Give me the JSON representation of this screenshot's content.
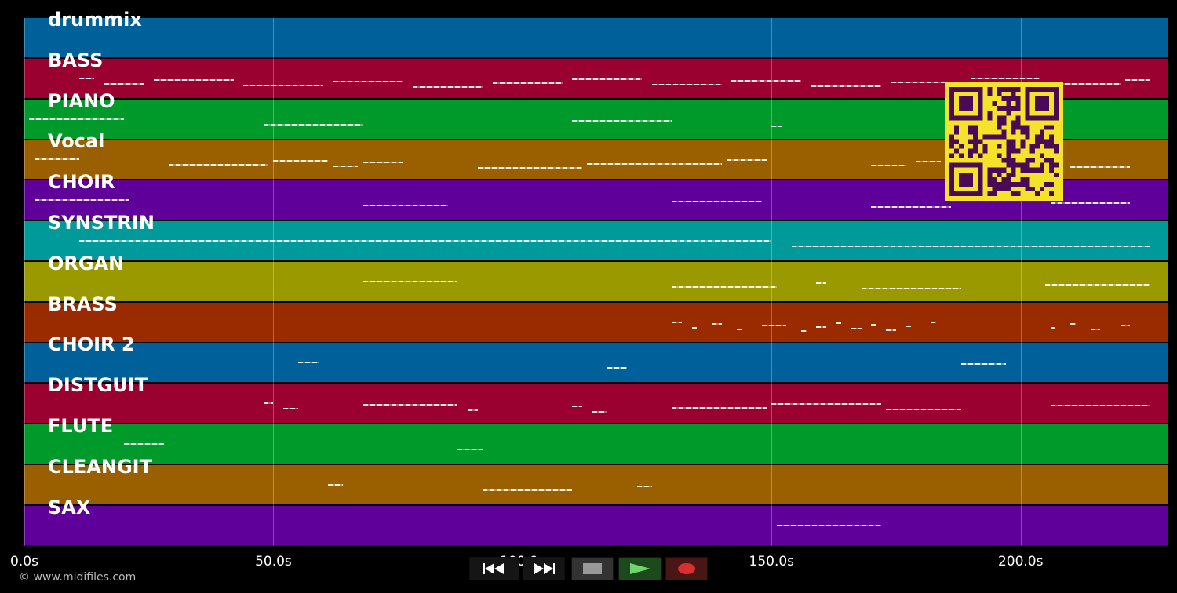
{
  "tracks": [
    {
      "label": "drummix",
      "color": "#00609a"
    },
    {
      "label": "BASS",
      "color": "#9a0030"
    },
    {
      "label": "PIANO",
      "color": "#009a2a"
    },
    {
      "label": "Vocal",
      "color": "#9a6000"
    },
    {
      "label": "CHOIR",
      "color": "#60009a"
    },
    {
      "label": "SYNSTRIN",
      "color": "#009a9a"
    },
    {
      "label": "ORGAN",
      "color": "#9a9a00"
    },
    {
      "label": "BRASS",
      "color": "#9a2a00"
    },
    {
      "label": "CHOIR 2",
      "color": "#00609a"
    },
    {
      "label": "DISTGUIT",
      "color": "#9a0030"
    },
    {
      "label": "FLUTE",
      "color": "#009a2a"
    },
    {
      "label": "CLEANGIT",
      "color": "#9a6000"
    },
    {
      "label": "SAX",
      "color": "#60009a"
    }
  ],
  "timeline": {
    "duration_seconds": 229.5,
    "ticks": [
      {
        "seconds": 0,
        "label": "0.0s"
      },
      {
        "seconds": 50,
        "label": "50.0s"
      },
      {
        "seconds": 100,
        "label": "100.0s"
      },
      {
        "seconds": 150,
        "label": "150.0s"
      },
      {
        "seconds": 200,
        "label": "200.0s"
      }
    ]
  },
  "notes": {
    "BASS": [
      [
        11,
        14
      ],
      [
        16,
        24
      ],
      [
        26,
        42
      ],
      [
        44,
        60
      ],
      [
        62,
        76
      ],
      [
        78,
        92
      ],
      [
        94,
        108
      ],
      [
        110,
        124
      ],
      [
        126,
        140
      ],
      [
        142,
        156
      ],
      [
        158,
        172
      ],
      [
        174,
        188
      ],
      [
        190,
        204
      ],
      [
        206,
        220
      ],
      [
        221,
        226
      ]
    ],
    "PIANO": [
      [
        1,
        20
      ],
      [
        48,
        68
      ],
      [
        110,
        130
      ],
      [
        150,
        152
      ]
    ],
    "Vocal": [
      [
        2,
        11
      ],
      [
        29,
        49
      ],
      [
        50,
        61
      ],
      [
        62,
        67
      ],
      [
        68,
        76
      ],
      [
        91,
        112
      ],
      [
        113,
        140
      ],
      [
        141,
        149
      ],
      [
        170,
        177
      ],
      [
        179,
        184
      ],
      [
        210,
        222
      ]
    ],
    "CHOIR": [
      [
        2,
        21
      ],
      [
        68,
        85
      ],
      [
        130,
        148
      ],
      [
        170,
        186
      ],
      [
        206,
        222
      ]
    ],
    "SYNSTRIN": [
      [
        11,
        150
      ],
      [
        154,
        226
      ]
    ],
    "ORGAN": [
      [
        68,
        87
      ],
      [
        130,
        151
      ],
      [
        159,
        161
      ],
      [
        168,
        188
      ],
      [
        205,
        226
      ]
    ],
    "BRASS": [
      [
        130,
        132
      ],
      [
        134,
        135
      ],
      [
        138,
        140
      ],
      [
        143,
        144
      ],
      [
        148,
        153
      ],
      [
        156,
        157
      ],
      [
        159,
        161
      ],
      [
        163,
        164
      ],
      [
        166,
        168
      ],
      [
        170,
        171
      ],
      [
        173,
        175
      ],
      [
        177,
        178
      ],
      [
        182,
        183
      ],
      [
        206,
        207
      ],
      [
        210,
        211
      ],
      [
        214,
        216
      ],
      [
        220,
        222
      ]
    ],
    "CHOIR 2": [
      [
        55,
        59
      ],
      [
        117,
        121
      ],
      [
        188,
        197
      ]
    ],
    "DISTGUIT": [
      [
        48,
        50
      ],
      [
        52,
        55
      ],
      [
        68,
        87
      ],
      [
        89,
        91
      ],
      [
        110,
        112
      ],
      [
        114,
        117
      ],
      [
        130,
        149
      ],
      [
        150,
        172
      ],
      [
        173,
        188
      ],
      [
        206,
        226
      ]
    ],
    "FLUTE": [
      [
        20,
        28
      ],
      [
        87,
        92
      ]
    ],
    "CLEANGIT": [
      [
        61,
        64
      ],
      [
        92,
        110
      ],
      [
        123,
        126
      ]
    ],
    "SAX": [
      [
        151,
        172
      ]
    ]
  },
  "transport": {
    "rewind_icon": "rewind-icon",
    "fast_forward_icon": "fast-forward-icon",
    "stop_icon": "stop-icon",
    "play_icon": "play-icon",
    "record_icon": "record-icon"
  },
  "qr_color": "#f5e22a",
  "copyright": "© www.midifiles.com"
}
